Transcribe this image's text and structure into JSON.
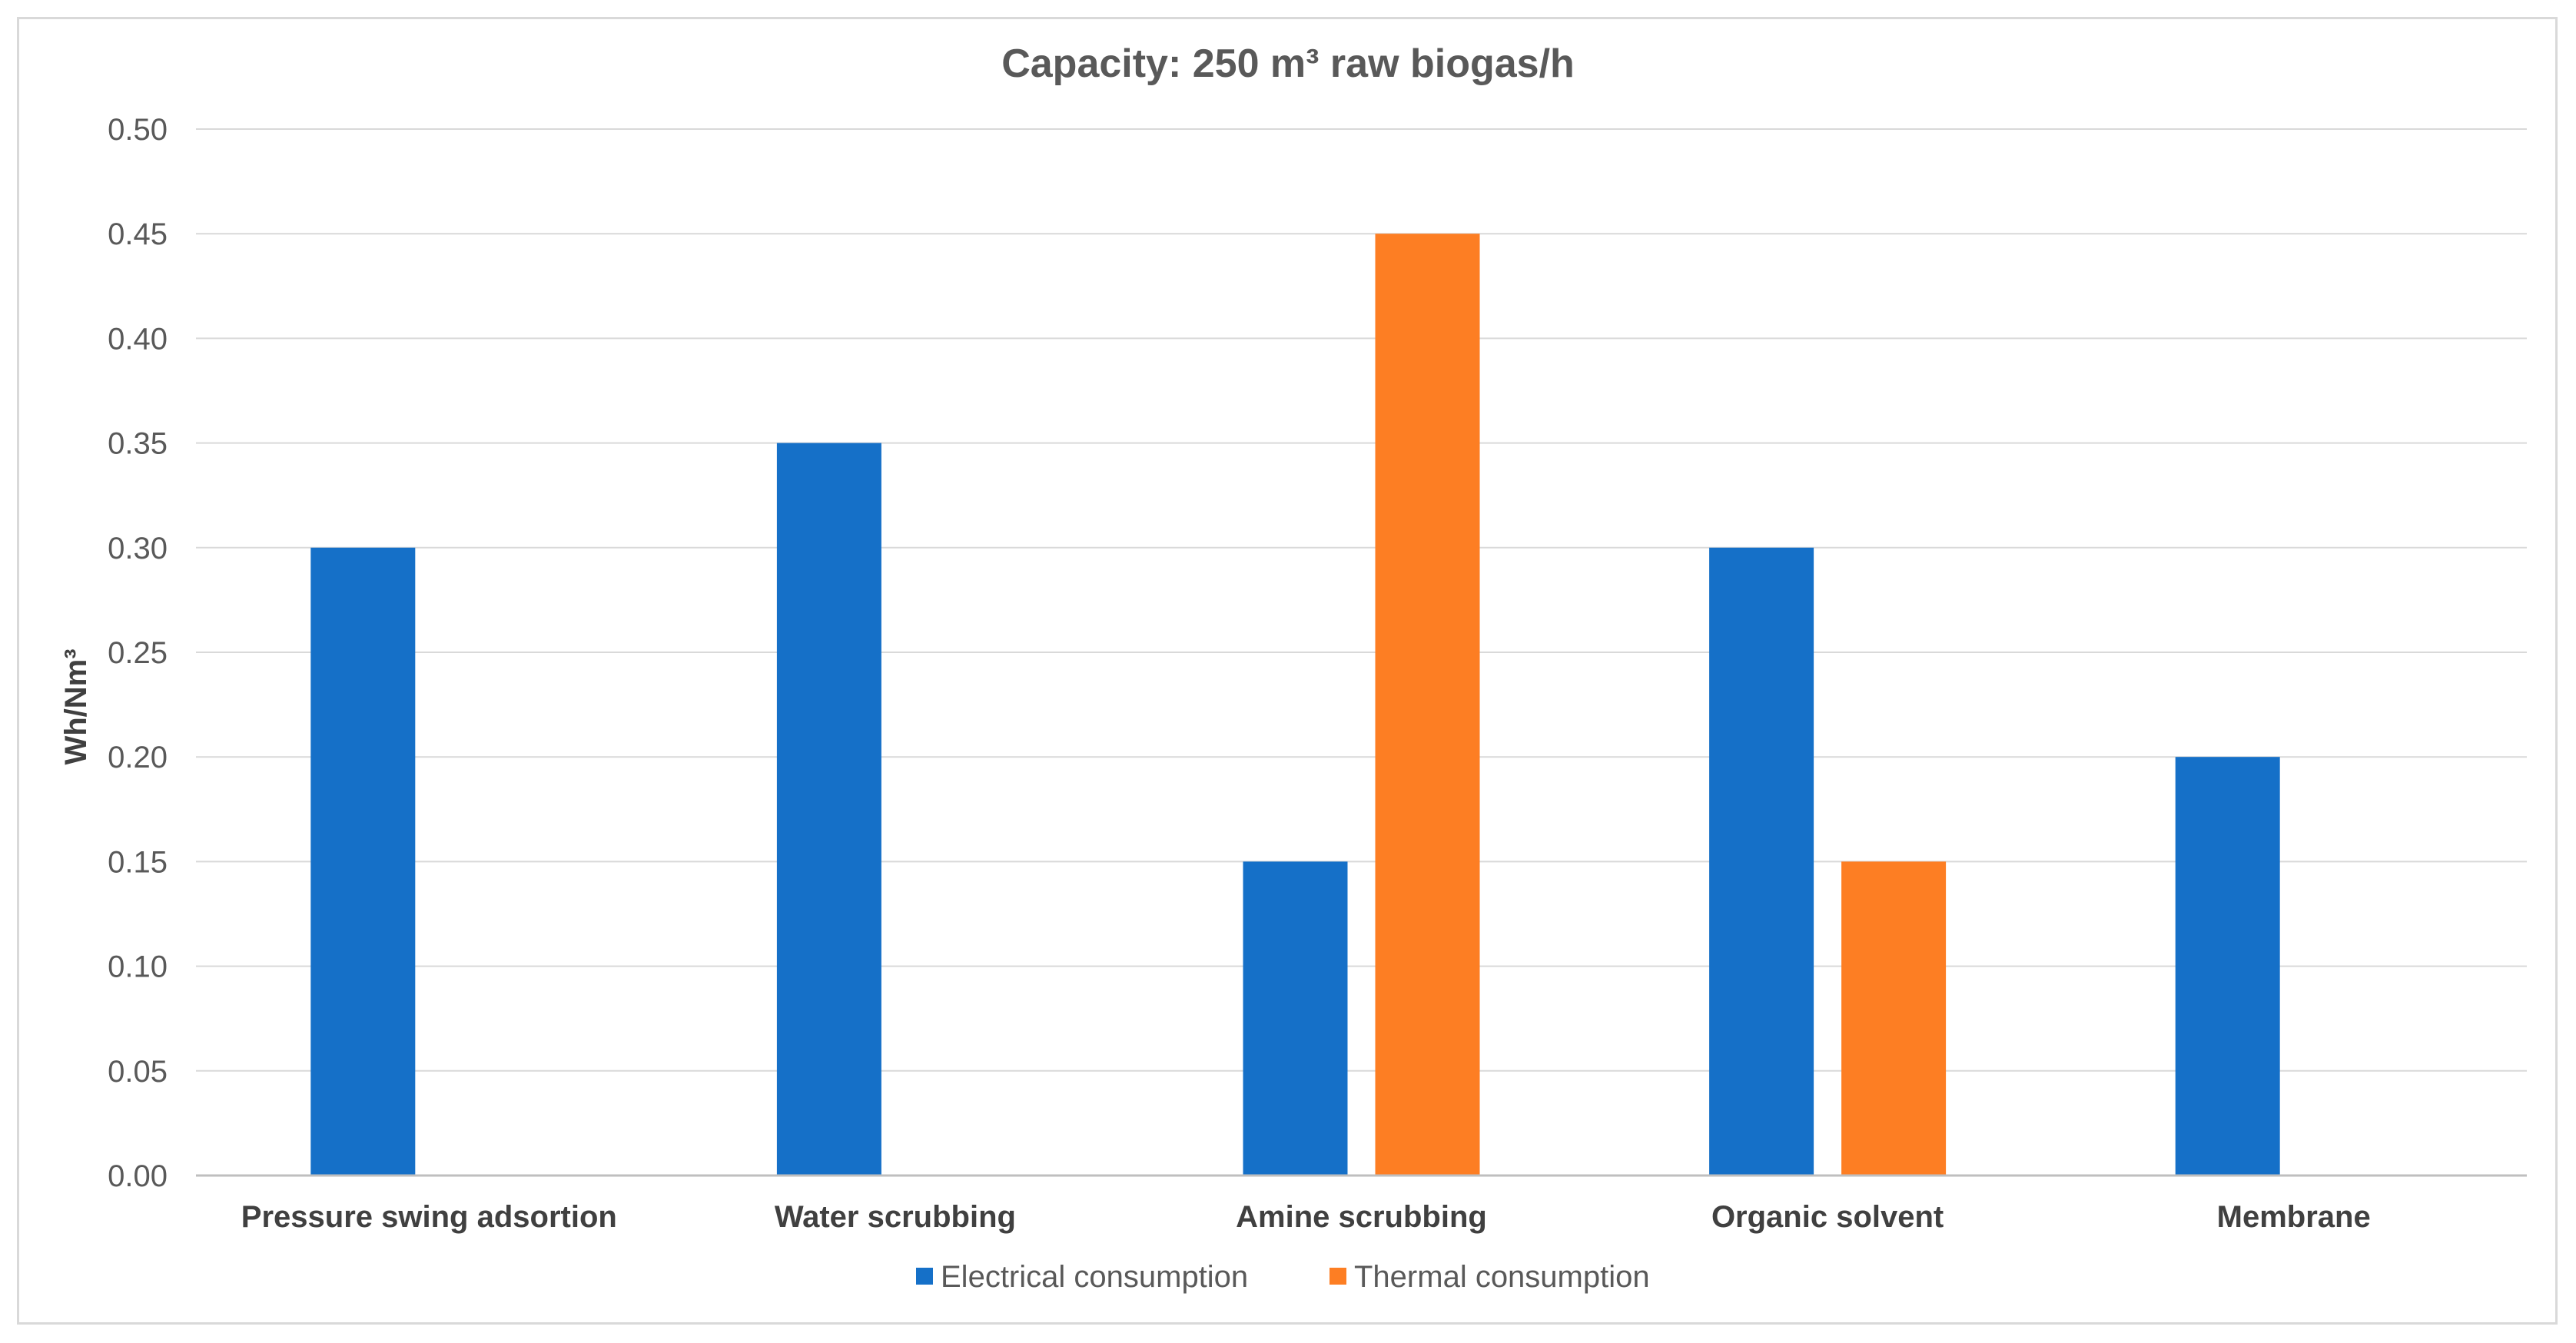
{
  "chart_data": {
    "type": "bar",
    "title": "Capacity: 250 m³ raw biogas/h",
    "xlabel": "",
    "ylabel": "Wh/Nm³",
    "ylim": [
      0,
      0.5
    ],
    "yticks": [
      "0.00",
      "0.05",
      "0.10",
      "0.15",
      "0.20",
      "0.25",
      "0.30",
      "0.35",
      "0.40",
      "0.45",
      "0.50"
    ],
    "categories": [
      "Pressure swing adsortion",
      "Water scrubbing",
      "Amine scrubbing",
      "Organic solvent",
      "Membrane"
    ],
    "series": [
      {
        "name": "Electrical consumption",
        "color": "#1570c8",
        "values": [
          0.3,
          0.35,
          0.15,
          0.3,
          0.2
        ]
      },
      {
        "name": "Thermal consumption",
        "color": "#fd7e23",
        "values": [
          0,
          0,
          0.45,
          0.15,
          0
        ]
      }
    ],
    "grid": true,
    "legend": "bottom"
  }
}
